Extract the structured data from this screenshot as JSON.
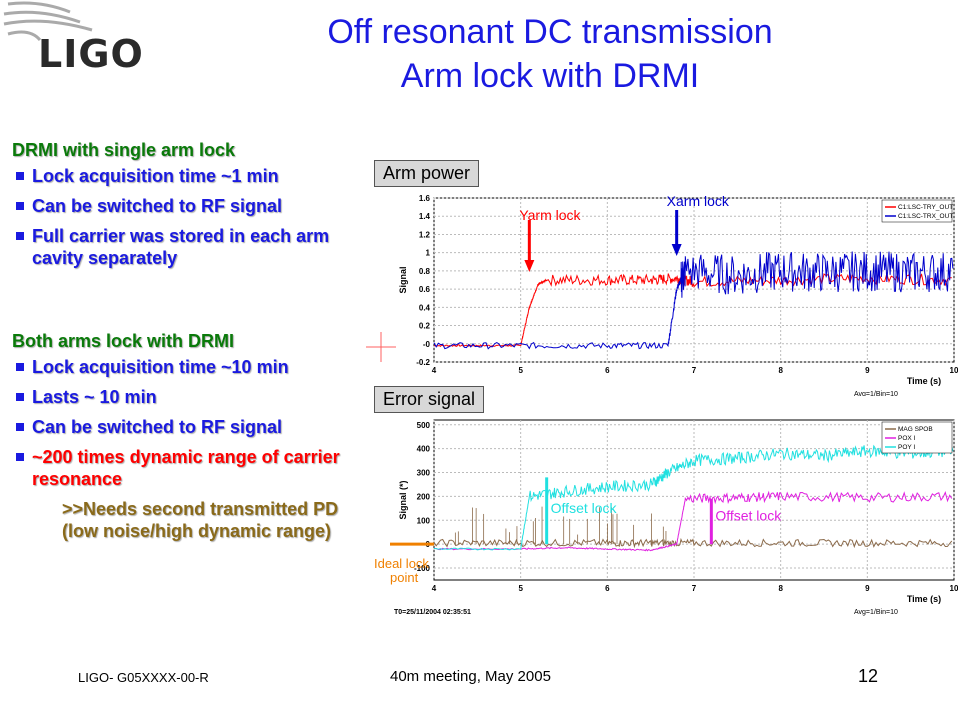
{
  "slide": {
    "logo": "LIGO",
    "title_line1": "Off resonant DC transmission",
    "title_line2": "Arm lock with DRMI",
    "section1": {
      "heading": "DRMI with single arm lock",
      "bullets": [
        "Lock acquisition time ~1 min",
        "Can be switched to RF signal",
        "Full carrier was stored in each arm cavity separately"
      ]
    },
    "section2": {
      "heading": "Both arms lock with DRMI",
      "bullets": [
        "Lock acquisition time ~10 min",
        "Lasts ~ 10 min",
        "Can be switched to RF signal"
      ],
      "red_bullet": "~200 times dynamic range of carrier resonance",
      "sub_note": ">>Needs second transmitted PD (low noise/high dynamic range)"
    },
    "footer_left": "LIGO- G05XXXX-00-R",
    "footer_center": "40m meeting, May 2005",
    "page_number": "12"
  },
  "chart_data": [
    {
      "type": "line",
      "tag": "Arm power",
      "xlabel": "Time (s)",
      "ylabel": "Signal",
      "xlim": [
        4,
        10
      ],
      "ylim": [
        -0.2,
        1.6
      ],
      "xticks": [
        "4",
        "5",
        "6",
        "7",
        "8",
        "9",
        "10"
      ],
      "yticks": [
        "-0.2",
        "-0",
        "0.2",
        "0.4",
        "0.6",
        "0.8",
        "1",
        "1.2",
        "1.4",
        "1.6"
      ],
      "grid": true,
      "legend_position": "top-right",
      "footer_text": "Avg=1/Bin=10",
      "series": [
        {
          "name": "C1:LSC-TRY_OUT",
          "color": "#ff0000",
          "x": [
            4.0,
            4.5,
            5.0,
            5.1,
            5.2,
            5.3,
            6.0,
            6.5,
            6.8,
            7.0,
            8.0,
            9.0,
            10.0
          ],
          "values": [
            -0.02,
            -0.02,
            -0.02,
            0.4,
            0.65,
            0.7,
            0.7,
            0.7,
            0.72,
            0.68,
            0.7,
            0.72,
            0.7
          ]
        },
        {
          "name": "C1:LSC-TRX_OUT",
          "color": "#0000cc",
          "x": [
            4.0,
            5.0,
            6.0,
            6.7,
            6.8,
            6.9,
            7.5,
            8.0,
            8.5,
            9.0,
            9.5,
            10.0
          ],
          "values": [
            -0.02,
            -0.02,
            -0.02,
            -0.02,
            0.6,
            0.8,
            0.75,
            0.8,
            0.78,
            0.8,
            0.78,
            0.8
          ]
        }
      ],
      "annotations": [
        {
          "text": "Yarm lock",
          "color": "#ff0000",
          "x": 5.1
        },
        {
          "text": "Xarm lock",
          "color": "#0000cc",
          "x": 6.8
        }
      ]
    },
    {
      "type": "line",
      "tag": "Error signal",
      "xlabel": "Time (s)",
      "ylabel": "Signal (*)",
      "xlim": [
        4,
        10
      ],
      "ylim": [
        -150,
        520
      ],
      "xticks": [
        "4",
        "5",
        "6",
        "7",
        "8",
        "9",
        "10"
      ],
      "yticks": [
        "-100",
        "0",
        "100",
        "200",
        "300",
        "400",
        "500"
      ],
      "grid": true,
      "legend_position": "top-right",
      "footer_left_text": "T0=25/11/2004 02:35:51",
      "footer_text": "Avg=1/Bin=10",
      "series": [
        {
          "name": "MAG SPOB",
          "color": "#8b6a4a",
          "x": [
            4.0,
            5.0,
            6.0,
            6.5,
            7.0,
            8.0,
            9.0,
            10.0
          ],
          "values": [
            5,
            5,
            5,
            5,
            5,
            5,
            5,
            5
          ]
        },
        {
          "name": "POX I",
          "color": "#e020e0",
          "x": [
            4.0,
            5.0,
            5.5,
            6.0,
            6.5,
            6.8,
            6.9,
            7.5,
            8.0,
            9.0,
            10.0
          ],
          "values": [
            -20,
            -20,
            -15,
            -20,
            -25,
            0,
            190,
            195,
            200,
            195,
            200
          ]
        },
        {
          "name": "POY I",
          "color": "#20e0e0",
          "x": [
            4.0,
            5.0,
            5.1,
            5.5,
            6.0,
            6.5,
            6.7,
            7.0,
            7.5,
            8.0,
            8.5,
            9.0,
            9.5,
            10.0
          ],
          "values": [
            -20,
            -20,
            200,
            220,
            240,
            250,
            300,
            350,
            360,
            380,
            370,
            390,
            380,
            390
          ]
        }
      ],
      "annotations": [
        {
          "text": "Offset lock",
          "color": "#20e0e0",
          "x": 5.3
        },
        {
          "text": "Offset lock",
          "color": "#e020e0",
          "x": 7.2
        },
        {
          "text": "Ideal lock point",
          "color": "#f08000",
          "y": 0
        }
      ]
    }
  ]
}
